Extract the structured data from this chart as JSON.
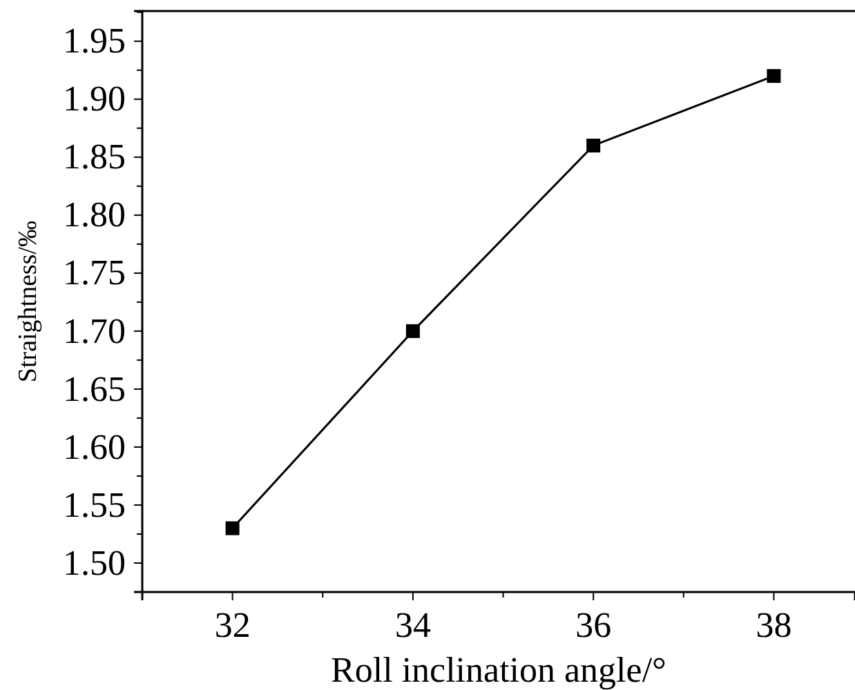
{
  "chart_data": {
    "type": "line",
    "xlabel": "Roll inclination angle/°",
    "ylabel": "Straightness/‰",
    "x": [
      32,
      34,
      36,
      38
    ],
    "series": [
      {
        "color": "#000000",
        "values": [
          1.53,
          1.7,
          1.86,
          1.92
        ]
      }
    ],
    "xlim": [
      31,
      38.9
    ],
    "xticks": [
      32,
      34,
      36,
      38
    ],
    "ylim": [
      1.475,
      1.976
    ],
    "yticks": [
      {
        "value": 1.5,
        "label": "1.50"
      },
      {
        "value": 1.55,
        "label": "1.55"
      },
      {
        "value": 1.6,
        "label": "1.60"
      },
      {
        "value": 1.65,
        "label": "1.65"
      },
      {
        "value": 1.7,
        "label": "1.70"
      },
      {
        "value": 1.75,
        "label": "1.75"
      },
      {
        "value": 1.8,
        "label": "1.80"
      },
      {
        "value": 1.85,
        "label": "1.85"
      },
      {
        "value": 1.9,
        "label": "1.90"
      },
      {
        "value": 1.95,
        "label": "1.95"
      }
    ],
    "marker": "square",
    "line_style": "solid",
    "grid": false
  }
}
